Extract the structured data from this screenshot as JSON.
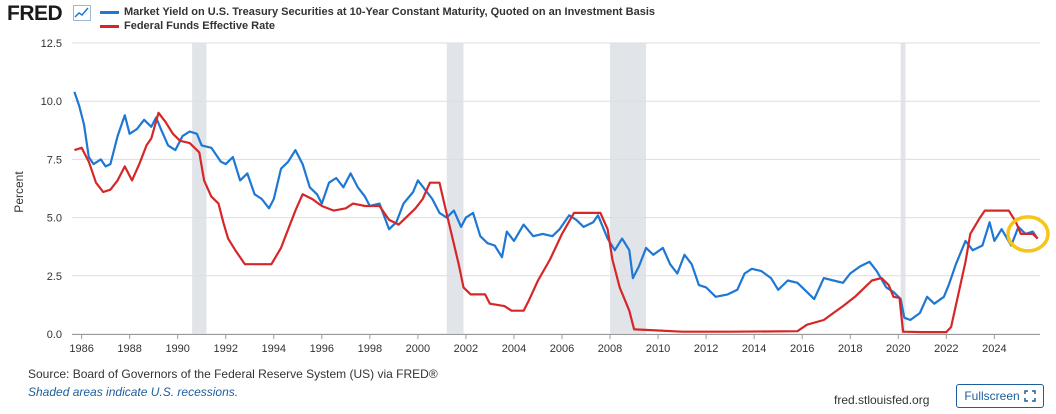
{
  "header": {
    "logo_text": "FRED",
    "logo_icon": "chart-line-icon"
  },
  "colors": {
    "series1": "#1f77d4",
    "series2": "#d62728",
    "recession_shade": "#e1e5ea",
    "grid": "#dddddd",
    "highlight": "#f5c518",
    "link": "#1c5e9c"
  },
  "footer": {
    "source": "Source: Board of Governors of the Federal Reserve System (US) via FRED®",
    "note": "Shaded areas indicate U.S. recessions.",
    "site": "fred.stlouisfed.org",
    "fullscreen_label": "Fullscreen",
    "fullscreen_icon": "expand-icon"
  },
  "chart_data": {
    "type": "line",
    "title": "",
    "xlabel": "",
    "ylabel": "Percent",
    "xlim": [
      1985.6,
      2025.9
    ],
    "ylim": [
      0,
      12.5
    ],
    "yticks": [
      0.0,
      2.5,
      5.0,
      7.5,
      10.0,
      12.5
    ],
    "ytick_labels": [
      "0.0",
      "2.5",
      "5.0",
      "7.5",
      "10.0",
      "12.5"
    ],
    "xticks": [
      1986,
      1988,
      1990,
      1992,
      1994,
      1996,
      1998,
      2000,
      2002,
      2004,
      2006,
      2008,
      2010,
      2012,
      2014,
      2016,
      2018,
      2020,
      2022,
      2024
    ],
    "xtick_labels": [
      "1986",
      "1988",
      "1990",
      "1992",
      "1994",
      "1996",
      "1998",
      "2000",
      "2002",
      "2004",
      "2006",
      "2008",
      "2010",
      "2012",
      "2014",
      "2016",
      "2018",
      "2020",
      "2022",
      "2024"
    ],
    "grid": true,
    "legend": "top-left",
    "recessions": [
      [
        1990.6,
        1991.2
      ],
      [
        2001.2,
        2001.9
      ],
      [
        2008.0,
        2009.5
      ],
      [
        2020.1,
        2020.3
      ]
    ],
    "highlight": {
      "x": 2025.4,
      "y": 4.3,
      "label": ""
    },
    "series": [
      {
        "name": "Market Yield on U.S. Treasury Securities at 10-Year Constant Maturity, Quoted on an Investment Basis",
        "color": "#1f77d4",
        "points": [
          [
            1985.7,
            10.4
          ],
          [
            1985.9,
            9.8
          ],
          [
            1986.1,
            9.0
          ],
          [
            1986.3,
            7.6
          ],
          [
            1986.5,
            7.3
          ],
          [
            1986.8,
            7.5
          ],
          [
            1987.0,
            7.2
          ],
          [
            1987.2,
            7.3
          ],
          [
            1987.5,
            8.5
          ],
          [
            1987.8,
            9.4
          ],
          [
            1988.0,
            8.6
          ],
          [
            1988.3,
            8.8
          ],
          [
            1988.6,
            9.2
          ],
          [
            1988.9,
            8.9
          ],
          [
            1989.1,
            9.3
          ],
          [
            1989.3,
            8.8
          ],
          [
            1989.6,
            8.1
          ],
          [
            1989.9,
            7.9
          ],
          [
            1990.2,
            8.5
          ],
          [
            1990.5,
            8.7
          ],
          [
            1990.8,
            8.6
          ],
          [
            1991.0,
            8.1
          ],
          [
            1991.4,
            8.0
          ],
          [
            1991.8,
            7.4
          ],
          [
            1992.0,
            7.3
          ],
          [
            1992.3,
            7.6
          ],
          [
            1992.6,
            6.6
          ],
          [
            1992.9,
            6.9
          ],
          [
            1993.2,
            6.0
          ],
          [
            1993.5,
            5.8
          ],
          [
            1993.8,
            5.4
          ],
          [
            1994.0,
            5.8
          ],
          [
            1994.3,
            7.1
          ],
          [
            1994.6,
            7.4
          ],
          [
            1994.9,
            7.9
          ],
          [
            1995.2,
            7.3
          ],
          [
            1995.5,
            6.3
          ],
          [
            1995.8,
            6.0
          ],
          [
            1996.0,
            5.6
          ],
          [
            1996.3,
            6.5
          ],
          [
            1996.6,
            6.7
          ],
          [
            1996.9,
            6.3
          ],
          [
            1997.2,
            6.9
          ],
          [
            1997.5,
            6.3
          ],
          [
            1997.8,
            5.9
          ],
          [
            1998.0,
            5.5
          ],
          [
            1998.4,
            5.6
          ],
          [
            1998.8,
            4.5
          ],
          [
            1999.1,
            4.8
          ],
          [
            1999.4,
            5.6
          ],
          [
            1999.8,
            6.1
          ],
          [
            2000.0,
            6.6
          ],
          [
            2000.3,
            6.2
          ],
          [
            2000.6,
            5.8
          ],
          [
            2000.9,
            5.2
          ],
          [
            2001.2,
            5.0
          ],
          [
            2001.5,
            5.3
          ],
          [
            2001.8,
            4.6
          ],
          [
            2002.0,
            5.0
          ],
          [
            2002.3,
            5.2
          ],
          [
            2002.6,
            4.2
          ],
          [
            2002.9,
            3.9
          ],
          [
            2003.2,
            3.8
          ],
          [
            2003.5,
            3.3
          ],
          [
            2003.7,
            4.4
          ],
          [
            2004.0,
            4.0
          ],
          [
            2004.4,
            4.7
          ],
          [
            2004.8,
            4.2
          ],
          [
            2005.2,
            4.3
          ],
          [
            2005.6,
            4.2
          ],
          [
            2005.9,
            4.5
          ],
          [
            2006.3,
            5.1
          ],
          [
            2006.6,
            4.9
          ],
          [
            2006.9,
            4.6
          ],
          [
            2007.3,
            4.8
          ],
          [
            2007.5,
            5.1
          ],
          [
            2007.9,
            4.1
          ],
          [
            2008.2,
            3.6
          ],
          [
            2008.5,
            4.1
          ],
          [
            2008.8,
            3.6
          ],
          [
            2008.95,
            2.4
          ],
          [
            2009.2,
            2.9
          ],
          [
            2009.5,
            3.7
          ],
          [
            2009.8,
            3.4
          ],
          [
            2010.2,
            3.7
          ],
          [
            2010.5,
            3.0
          ],
          [
            2010.8,
            2.6
          ],
          [
            2011.1,
            3.4
          ],
          [
            2011.4,
            3.0
          ],
          [
            2011.7,
            2.1
          ],
          [
            2012.0,
            2.0
          ],
          [
            2012.4,
            1.6
          ],
          [
            2012.9,
            1.7
          ],
          [
            2013.3,
            1.9
          ],
          [
            2013.6,
            2.6
          ],
          [
            2013.9,
            2.8
          ],
          [
            2014.3,
            2.7
          ],
          [
            2014.7,
            2.4
          ],
          [
            2015.0,
            1.9
          ],
          [
            2015.4,
            2.3
          ],
          [
            2015.8,
            2.2
          ],
          [
            2016.2,
            1.8
          ],
          [
            2016.5,
            1.5
          ],
          [
            2016.9,
            2.4
          ],
          [
            2017.3,
            2.3
          ],
          [
            2017.7,
            2.2
          ],
          [
            2018.0,
            2.6
          ],
          [
            2018.4,
            2.9
          ],
          [
            2018.8,
            3.1
          ],
          [
            2019.1,
            2.7
          ],
          [
            2019.5,
            2.0
          ],
          [
            2019.8,
            1.8
          ],
          [
            2020.1,
            1.5
          ],
          [
            2020.25,
            0.7
          ],
          [
            2020.5,
            0.6
          ],
          [
            2020.9,
            0.9
          ],
          [
            2021.2,
            1.6
          ],
          [
            2021.5,
            1.3
          ],
          [
            2021.9,
            1.6
          ],
          [
            2022.1,
            2.1
          ],
          [
            2022.4,
            3.0
          ],
          [
            2022.8,
            4.0
          ],
          [
            2023.1,
            3.6
          ],
          [
            2023.5,
            3.8
          ],
          [
            2023.8,
            4.8
          ],
          [
            2024.0,
            4.0
          ],
          [
            2024.3,
            4.5
          ],
          [
            2024.7,
            3.8
          ],
          [
            2025.0,
            4.6
          ],
          [
            2025.3,
            4.3
          ],
          [
            2025.6,
            4.4
          ],
          [
            2025.8,
            4.1
          ]
        ]
      },
      {
        "name": "Federal Funds Effective Rate",
        "color": "#d62728",
        "points": [
          [
            1985.7,
            7.9
          ],
          [
            1986.0,
            8.0
          ],
          [
            1986.3,
            7.4
          ],
          [
            1986.6,
            6.5
          ],
          [
            1986.9,
            6.1
          ],
          [
            1987.2,
            6.2
          ],
          [
            1987.5,
            6.6
          ],
          [
            1987.8,
            7.2
          ],
          [
            1988.1,
            6.6
          ],
          [
            1988.4,
            7.3
          ],
          [
            1988.7,
            8.1
          ],
          [
            1988.9,
            8.4
          ],
          [
            1989.2,
            9.5
          ],
          [
            1989.5,
            9.1
          ],
          [
            1989.8,
            8.6
          ],
          [
            1990.1,
            8.3
          ],
          [
            1990.5,
            8.2
          ],
          [
            1990.9,
            7.8
          ],
          [
            1991.1,
            6.6
          ],
          [
            1991.4,
            5.9
          ],
          [
            1991.7,
            5.6
          ],
          [
            1991.9,
            4.8
          ],
          [
            1992.1,
            4.1
          ],
          [
            1992.4,
            3.6
          ],
          [
            1992.8,
            3.0
          ],
          [
            1993.5,
            3.0
          ],
          [
            1993.9,
            3.0
          ],
          [
            1994.3,
            3.7
          ],
          [
            1994.6,
            4.5
          ],
          [
            1994.9,
            5.3
          ],
          [
            1995.2,
            6.0
          ],
          [
            1995.6,
            5.8
          ],
          [
            1996.0,
            5.5
          ],
          [
            1996.5,
            5.3
          ],
          [
            1997.0,
            5.4
          ],
          [
            1997.3,
            5.6
          ],
          [
            1997.8,
            5.5
          ],
          [
            1998.4,
            5.5
          ],
          [
            1998.8,
            4.9
          ],
          [
            1999.2,
            4.7
          ],
          [
            1999.6,
            5.1
          ],
          [
            1999.9,
            5.4
          ],
          [
            2000.2,
            5.8
          ],
          [
            2000.5,
            6.5
          ],
          [
            2000.9,
            6.5
          ],
          [
            2001.1,
            5.6
          ],
          [
            2001.4,
            4.3
          ],
          [
            2001.7,
            3.0
          ],
          [
            2001.9,
            2.0
          ],
          [
            2002.2,
            1.7
          ],
          [
            2002.8,
            1.7
          ],
          [
            2003.0,
            1.3
          ],
          [
            2003.6,
            1.2
          ],
          [
            2003.9,
            1.0
          ],
          [
            2004.4,
            1.0
          ],
          [
            2004.6,
            1.4
          ],
          [
            2005.0,
            2.3
          ],
          [
            2005.5,
            3.2
          ],
          [
            2006.0,
            4.3
          ],
          [
            2006.5,
            5.2
          ],
          [
            2007.6,
            5.2
          ],
          [
            2007.9,
            4.5
          ],
          [
            2008.1,
            3.2
          ],
          [
            2008.4,
            2.0
          ],
          [
            2008.8,
            1.0
          ],
          [
            2009.0,
            0.2
          ],
          [
            2010.0,
            0.15
          ],
          [
            2011.0,
            0.1
          ],
          [
            2013.0,
            0.1
          ],
          [
            2015.8,
            0.12
          ],
          [
            2016.2,
            0.4
          ],
          [
            2016.9,
            0.6
          ],
          [
            2017.3,
            0.9
          ],
          [
            2017.7,
            1.2
          ],
          [
            2018.2,
            1.6
          ],
          [
            2018.6,
            2.0
          ],
          [
            2018.9,
            2.3
          ],
          [
            2019.3,
            2.4
          ],
          [
            2019.6,
            2.1
          ],
          [
            2019.8,
            1.6
          ],
          [
            2020.05,
            1.55
          ],
          [
            2020.2,
            0.1
          ],
          [
            2021.0,
            0.08
          ],
          [
            2022.0,
            0.08
          ],
          [
            2022.2,
            0.3
          ],
          [
            2022.5,
            1.7
          ],
          [
            2022.8,
            3.1
          ],
          [
            2023.0,
            4.3
          ],
          [
            2023.4,
            5.0
          ],
          [
            2023.6,
            5.3
          ],
          [
            2024.6,
            5.3
          ],
          [
            2024.9,
            4.8
          ],
          [
            2025.1,
            4.3
          ],
          [
            2025.6,
            4.3
          ],
          [
            2025.8,
            4.1
          ]
        ]
      }
    ]
  }
}
